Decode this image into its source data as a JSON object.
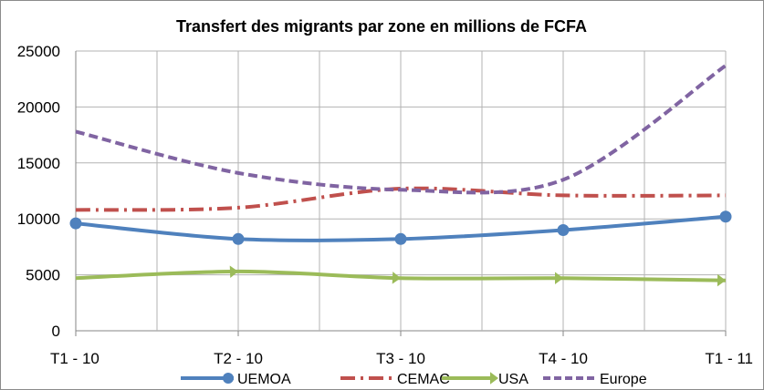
{
  "chart_data": {
    "type": "line",
    "title": "Transfert des migrants par zone en millions de FCFA",
    "xlabel": "",
    "ylabel": "",
    "categories": [
      "T1 - 10",
      "T2 - 10",
      "T3 - 10",
      "T4 - 10",
      "T1 - 11"
    ],
    "ylim": [
      0,
      25000
    ],
    "yticks": [
      0,
      5000,
      10000,
      15000,
      20000,
      25000
    ],
    "ytick_labels": [
      "0",
      "5000",
      "10000",
      "15000",
      "20000",
      "25000"
    ],
    "grid": true,
    "legend_position": "bottom",
    "series": [
      {
        "name": "UEMOA",
        "values": [
          9600,
          8200,
          8200,
          9000,
          10200
        ],
        "color": "#4f81bd",
        "style": "solid-circle"
      },
      {
        "name": "CEMAC",
        "values": [
          10800,
          11000,
          12700,
          12100,
          12100
        ],
        "color": "#c0504d",
        "style": "dashdot"
      },
      {
        "name": "USA",
        "values": [
          4700,
          5300,
          4700,
          4700,
          4500
        ],
        "color": "#9bbb59",
        "style": "solid-arrow"
      },
      {
        "name": "Europe",
        "values": [
          17800,
          14100,
          12600,
          13500,
          23700
        ],
        "color": "#8064a2",
        "style": "dashed"
      }
    ]
  }
}
